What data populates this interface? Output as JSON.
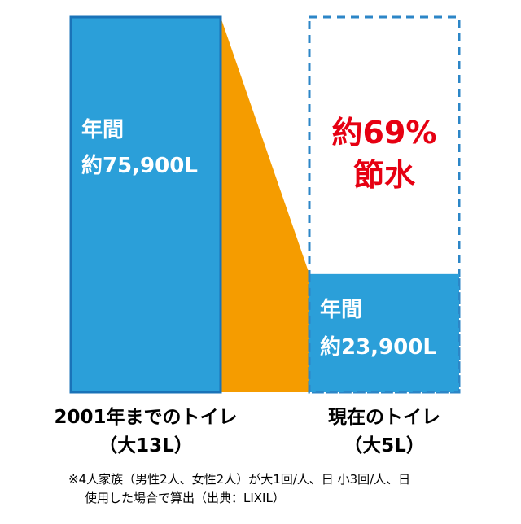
{
  "chart_data": {
    "type": "bar",
    "unit": "L",
    "ylim": [
      0,
      75900
    ],
    "categories": [
      "2001年までのトイレ",
      "現在のトイレ"
    ],
    "category_notes": [
      "（大13L）",
      "（大5L）"
    ],
    "values": [
      75900,
      23900
    ],
    "bar_labels": [
      {
        "line1": "年間",
        "line2": "約75,900L"
      },
      {
        "line1": "年間",
        "line2": "約23,900L"
      }
    ],
    "savings": {
      "line1": "約69%",
      "line2": "節水",
      "saved_value": 52000
    }
  },
  "footnote": {
    "line1": "※4人家族（男性2人、女性2人）が大1回/人、日 小3回/人、日",
    "line2": "使用した場合で算出（出典：LIXIL）"
  },
  "colors": {
    "bar_fill": "#2b9fd9",
    "bar_outline": "#1a73b8",
    "trapezoid": "#f59c00",
    "dashed_outline": "#2c86c7",
    "savings_text": "#e60012",
    "bar_text": "#ffffff",
    "label_text": "#000000"
  }
}
